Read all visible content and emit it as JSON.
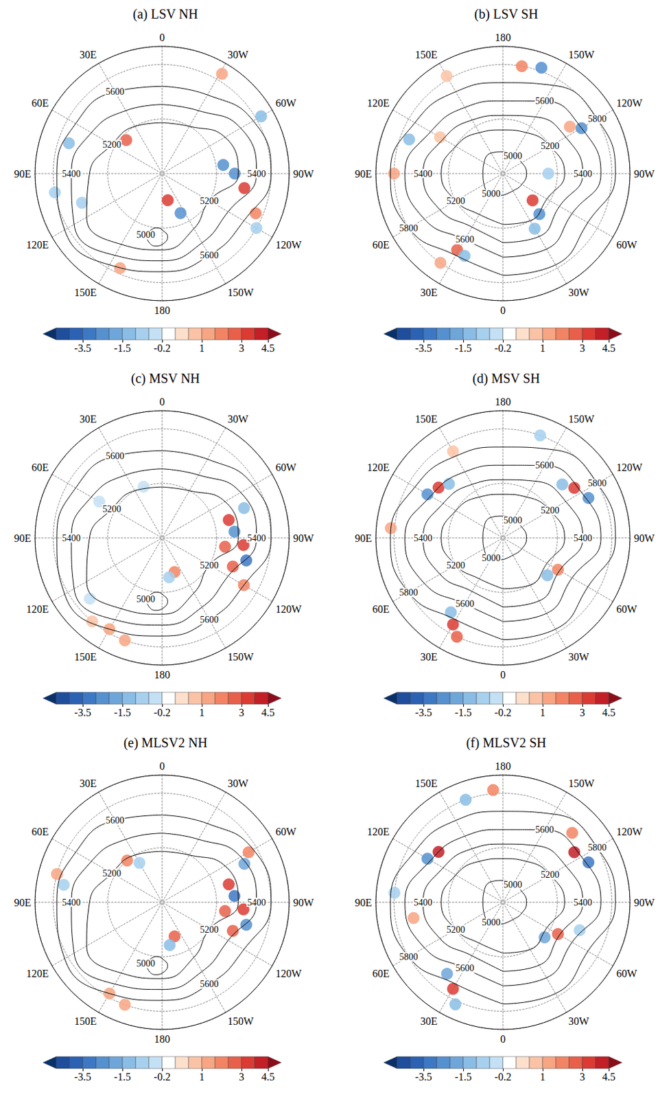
{
  "chart_data": {
    "type": "polar",
    "grid": true,
    "tick_labels": "x",
    "xlim": [
      0,
      360
    ],
    "xticks": [
      0,
      {
        "value": 30,
        "label": "30E"
      },
      {
        "value": 60,
        "label": "60E"
      },
      {
        "value": 90,
        "label": "90E"
      },
      {
        "value": 120,
        "label": "120E"
      },
      {
        "value": 150,
        "label": "150E"
      },
      180,
      {
        "value": 210,
        "label": "150W"
      },
      {
        "value": 240,
        "label": "120W"
      },
      {
        "value": 270,
        "label": "90W"
      },
      {
        "value": 300,
        "label": "60W"
      },
      {
        "value": 330,
        "label": "30W"
      }
    ],
    "ylim": [
      0,
      70
    ],
    "yticks": [
      0,
      30,
      60
    ],
    "colorbar": {
      "levels": [
        -4.5,
        -4,
        -3.5,
        -3,
        -2,
        -1.5,
        -1,
        -0.5,
        -0.2,
        0.2,
        0.5,
        1,
        1.5,
        2,
        3,
        4,
        4.5
      ],
      "colors": [
        "#08306b",
        "#1f4e9c",
        "#2b62b3",
        "#3d78c4",
        "#5590cf",
        "#6fa6da",
        "#8abde5",
        "#a6d0ee",
        "#c4e0f5",
        "#ffffff",
        "#fde0cc",
        "#fbc3a6",
        "#f7a583",
        "#f28463",
        "#e8604a",
        "#db3b33",
        "#c21f26",
        "#8b0d1a"
      ],
      "ticks": [
        -3.5,
        -1.5,
        -0.2,
        1,
        3,
        4.5
      ]
    },
    "contours": {
      "NH": [
        {
          "level": 5000,
          "lon": [
            165,
            170,
            175,
            180,
            185,
            180,
            175,
            170,
            165
          ],
          "colat": [
            35,
            31,
            30,
            31,
            35,
            39,
            40,
            39,
            35
          ]
        },
        {
          "level": 5200,
          "lon": [
            0,
            30,
            60,
            90,
            120,
            150,
            180,
            210,
            240,
            270,
            300,
            330,
            360
          ],
          "colat": [
            28,
            30,
            32,
            40,
            48,
            45,
            42,
            35,
            30,
            42,
            40,
            30,
            28
          ]
        },
        {
          "level": 5400,
          "lon": [
            0,
            30,
            60,
            90,
            120,
            150,
            180,
            210,
            240,
            270,
            300,
            330,
            360
          ],
          "colat": [
            38,
            40,
            45,
            50,
            56,
            52,
            48,
            44,
            42,
            52,
            50,
            40,
            38
          ]
        },
        {
          "level": 5600,
          "lon": [
            0,
            30,
            60,
            90,
            120,
            150,
            180,
            210,
            240,
            270,
            300,
            330,
            360
          ],
          "colat": [
            48,
            52,
            55,
            58,
            62,
            58,
            54,
            52,
            52,
            60,
            58,
            50,
            48
          ]
        }
      ],
      "SH": [
        {
          "level": 5000,
          "lon": [
            0,
            30,
            60,
            90,
            120,
            150,
            180,
            210,
            240,
            270,
            300,
            330,
            360
          ],
          "colat": [
            12,
            13,
            12,
            11,
            12,
            13,
            12,
            11,
            12,
            13,
            12,
            11,
            12
          ]
        },
        {
          "level": 5200,
          "lon": [
            0,
            30,
            60,
            90,
            120,
            150,
            180,
            210,
            240,
            270,
            300,
            330,
            360
          ],
          "colat": [
            28,
            26,
            30,
            34,
            30,
            26,
            24,
            26,
            30,
            34,
            28,
            30,
            28
          ]
        },
        {
          "level": 5400,
          "lon": [
            0,
            30,
            60,
            90,
            120,
            150,
            180,
            210,
            240,
            270,
            300,
            330,
            360
          ],
          "colat": [
            38,
            34,
            40,
            44,
            38,
            34,
            32,
            36,
            40,
            44,
            36,
            40,
            38
          ]
        },
        {
          "level": 5600,
          "lon": [
            0,
            30,
            60,
            90,
            120,
            150,
            180,
            210,
            240,
            270,
            300,
            330,
            360
          ],
          "colat": [
            46,
            42,
            50,
            54,
            46,
            42,
            40,
            46,
            50,
            54,
            44,
            48,
            46
          ]
        },
        {
          "level": 5800,
          "lon": [
            0,
            30,
            60,
            90,
            120,
            150,
            180,
            210,
            240,
            270,
            300,
            330,
            360
          ],
          "colat": [
            56,
            52,
            60,
            62,
            56,
            52,
            50,
            56,
            60,
            62,
            54,
            58,
            56
          ]
        }
      ]
    },
    "panels": [
      {
        "title": "(a) LSV NH",
        "hemisphere": "NH",
        "anomalies": [
          [
            260,
            46,
            3
          ],
          [
            278,
            34,
            -2.5
          ],
          [
            270,
            40,
            -3
          ],
          [
            192,
            15,
            3
          ],
          [
            205,
            24,
            -2.5
          ],
          [
            72,
            54,
            -1.5
          ],
          [
            47,
            27,
            2
          ],
          [
            156,
            57,
            1
          ],
          [
            329,
            64,
            1
          ],
          [
            300,
            63,
            -1.5
          ],
          [
            247,
            56,
            1.5
          ],
          [
            110,
            47,
            -1
          ],
          [
            100,
            60,
            -1
          ],
          [
            240,
            60,
            -1
          ]
        ]
      },
      {
        "title": "(b) LSV SH",
        "hemisphere": "SH",
        "anomalies": [
          [
            240,
            50,
            -3
          ],
          [
            235,
            45,
            1
          ],
          [
            200,
            62,
            -2.5
          ],
          [
            190,
            60,
            1.5
          ],
          [
            312,
            22,
            3
          ],
          [
            318,
            30,
            -2.5
          ],
          [
            330,
            35,
            -1.5
          ],
          [
            31,
            49,
            2
          ],
          [
            25,
            50,
            -1.5
          ],
          [
            35,
            60,
            1
          ],
          [
            110,
            55,
            -1.5
          ],
          [
            90,
            60,
            1
          ],
          [
            150,
            62,
            0.5
          ],
          [
            270,
            25,
            -1
          ],
          [
            120,
            40,
            0.5
          ]
        ]
      },
      {
        "title": "(c) MSV NH",
        "hemisphere": "NH",
        "anomalies": [
          [
            265,
            45,
            3.5
          ],
          [
            275,
            40,
            -3
          ],
          [
            255,
            48,
            -3.5
          ],
          [
            285,
            38,
            3
          ],
          [
            262,
            35,
            2.5
          ],
          [
            248,
            42,
            2
          ],
          [
            240,
            52,
            1.5
          ],
          [
            290,
            48,
            -1.5
          ],
          [
            200,
            20,
            1.5
          ],
          [
            190,
            22,
            -1
          ],
          [
            150,
            58,
            1
          ],
          [
            160,
            60,
            1
          ],
          [
            140,
            60,
            0.5
          ],
          [
            130,
            52,
            -0.5
          ],
          [
            60,
            40,
            -0.5
          ],
          [
            20,
            30,
            -0.5
          ]
        ]
      },
      {
        "title": "(d) MSV SH",
        "hemisphere": "SH",
        "anomalies": [
          [
            235,
            48,
            3.5
          ],
          [
            245,
            52,
            -3
          ],
          [
            228,
            44,
            -1.5
          ],
          [
            128,
            45,
            3.5
          ],
          [
            120,
            48,
            -2.5
          ],
          [
            135,
            42,
            -1.5
          ],
          [
            30,
            55,
            3
          ],
          [
            35,
            50,
            -1.5
          ],
          [
            25,
            60,
            2
          ],
          [
            300,
            35,
            1.5
          ],
          [
            310,
            32,
            -1.5
          ],
          [
            200,
            60,
            -1
          ],
          [
            150,
            55,
            0.5
          ],
          [
            95,
            62,
            1
          ]
        ]
      },
      {
        "title": "(e) MLSV2 NH",
        "hemisphere": "NH",
        "anomalies": [
          [
            265,
            45,
            3.5
          ],
          [
            275,
            40,
            -3.5
          ],
          [
            255,
            48,
            -3
          ],
          [
            285,
            38,
            3
          ],
          [
            262,
            35,
            2.5
          ],
          [
            248,
            42,
            2
          ],
          [
            295,
            50,
            -2
          ],
          [
            300,
            55,
            1.5
          ],
          [
            200,
            20,
            2
          ],
          [
            190,
            24,
            -1.5
          ],
          [
            150,
            58,
            1
          ],
          [
            160,
            60,
            1
          ],
          [
            80,
            55,
            -1
          ],
          [
            75,
            60,
            1
          ],
          [
            40,
            30,
            1.5
          ],
          [
            30,
            25,
            -1
          ]
        ]
      },
      {
        "title": "(f) MLSV2 SH",
        "hemisphere": "SH",
        "anomalies": [
          [
            235,
            48,
            4
          ],
          [
            245,
            52,
            -3.5
          ],
          [
            225,
            54,
            1.5
          ],
          [
            128,
            45,
            4
          ],
          [
            120,
            48,
            -2.5
          ],
          [
            160,
            60,
            -1.5
          ],
          [
            175,
            62,
            1.5
          ],
          [
            30,
            55,
            3.5
          ],
          [
            38,
            50,
            -2
          ],
          [
            25,
            62,
            -1.5
          ],
          [
            300,
            35,
            2.5
          ],
          [
            310,
            30,
            -2
          ],
          [
            290,
            45,
            -1
          ],
          [
            95,
            60,
            -1
          ],
          [
            80,
            50,
            1
          ]
        ]
      }
    ]
  }
}
